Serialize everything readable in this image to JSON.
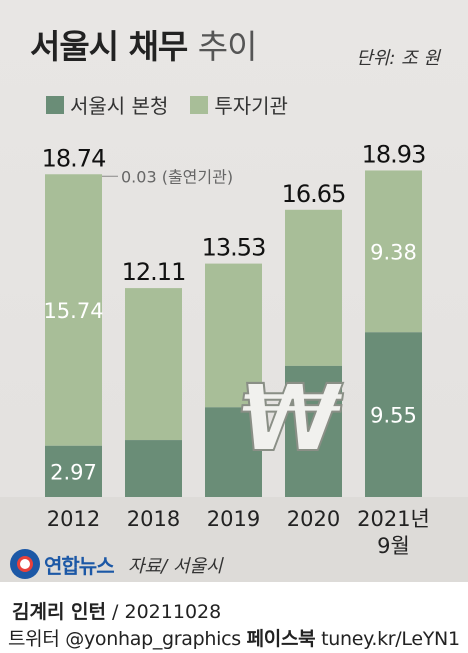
{
  "header": {
    "title_bold": "서울시 채무",
    "title_light": "추이",
    "unit": "단위: 조 원"
  },
  "legend": {
    "items": [
      {
        "label": "서울시 본청",
        "color": "#6a8d77"
      },
      {
        "label": "투자기관",
        "color": "#a8be98"
      }
    ]
  },
  "chart_data": {
    "type": "bar",
    "stacked": true,
    "categories": [
      "2012",
      "2018",
      "2019",
      "2020",
      "2021년 9월"
    ],
    "series": [
      {
        "name": "서울시 본청",
        "color": "#6a8d77",
        "values": [
          2.97,
          3.3,
          5.2,
          7.6,
          9.55
        ]
      },
      {
        "name": "투자기관",
        "color": "#a8be98",
        "values": [
          15.74,
          8.81,
          8.33,
          9.05,
          9.38
        ]
      }
    ],
    "totals": [
      "18.74",
      "12.11",
      "13.53",
      "16.65",
      "18.93"
    ],
    "segment_labels": {
      "서울시 본청": [
        "2.97",
        "",
        "",
        "",
        "9.55"
      ],
      "투자기관": [
        "15.74",
        "",
        "",
        "",
        "9.38"
      ]
    },
    "annotation": "0.03 (출연기관)",
    "ylim": [
      0,
      20
    ]
  },
  "logo": {
    "text": "연합뉴스"
  },
  "source": "자료/ 서울시",
  "footer": {
    "author": "김계리 인턴",
    "date": " / 20211028",
    "line2_a": "트위터 @yonhap_graphics ",
    "line2_b": "페이스북",
    "line2_c": " tuney.kr/LeYN1"
  }
}
